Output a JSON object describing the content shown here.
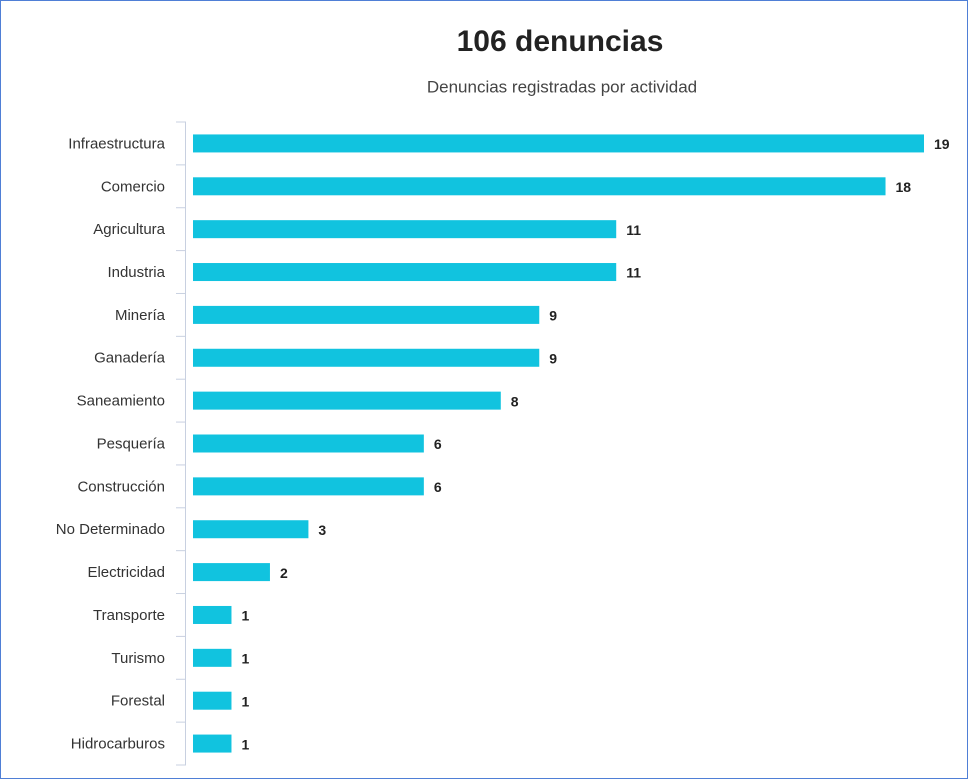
{
  "chart_data": {
    "type": "bar",
    "orientation": "horizontal",
    "title": "106 denuncias",
    "subtitle": "Denuncias registradas por actividad",
    "categories": [
      "Infraestructura",
      "Comercio",
      "Agricultura",
      "Industria",
      "Minería",
      "Ganadería",
      "Saneamiento",
      "Pesquería",
      "Construcción",
      "No Determinado",
      "Electricidad",
      "Transporte",
      "Turismo",
      "Forestal",
      "Hidrocarburos"
    ],
    "values": [
      19,
      18,
      11,
      11,
      9,
      9,
      8,
      6,
      6,
      3,
      2,
      1,
      1,
      1,
      1
    ],
    "color": "#11c3df"
  }
}
